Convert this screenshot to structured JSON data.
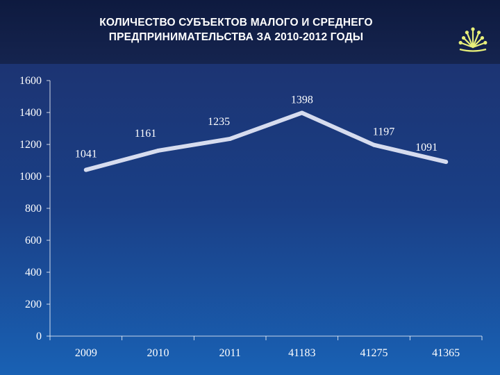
{
  "title_lines": [
    "КОЛИЧЕСТВО СУБЪЕКТОВ МАЛОГО И СРЕДНЕГО",
    "ПРЕДПРИНИМАТЕЛЬСТВА ЗА 2010-2012 ГОДЫ"
  ],
  "colors": {
    "line": "#d6dcef",
    "text": "#ffffff",
    "logo": "#e8f07a"
  },
  "chart_data": {
    "type": "line",
    "categories": [
      "2009",
      "2010",
      "2011",
      "41183",
      "41275",
      "41365"
    ],
    "values": [
      1041,
      1161,
      1235,
      1398,
      1197,
      1091
    ],
    "data_labels": [
      "1041",
      "1161",
      "1235",
      "1398",
      "1197",
      "1091"
    ],
    "yticks": [
      "0",
      "200",
      "400",
      "600",
      "800",
      "1000",
      "1200",
      "1400",
      "1600"
    ],
    "ylim": [
      0,
      1600
    ],
    "grid": false,
    "legend": "none"
  }
}
